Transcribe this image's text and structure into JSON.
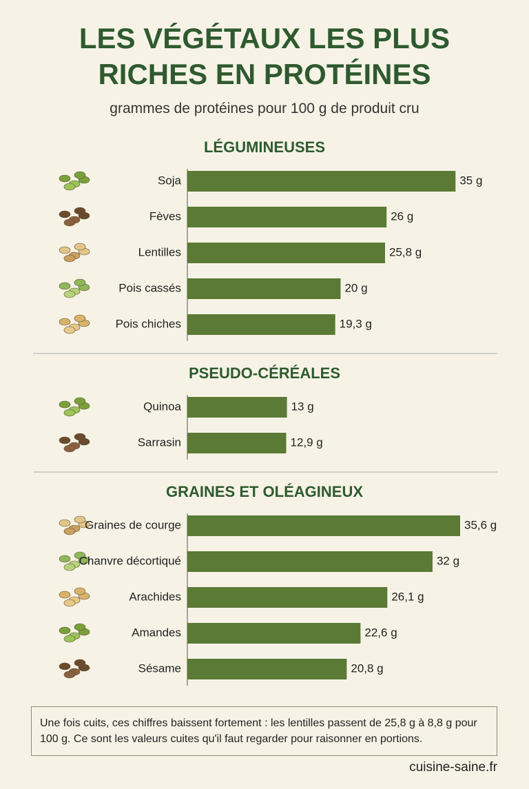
{
  "title": "LES VÉGÉTAUX LES PLUS RICHES EN PROTÉINES",
  "subtitle": "grammes de protéines pour 100 g de produit cru",
  "chart_data": [
    {
      "type": "bar",
      "orientation": "horizontal",
      "title": "LÉGUMINEUSES",
      "color": "#5b7a35",
      "categories": [
        "Soja",
        "Fèves",
        "Lentilles",
        "Pois cassés",
        "Pois chiches"
      ],
      "values": [
        35,
        26,
        25.8,
        20,
        19.3
      ],
      "value_labels": [
        "35 g",
        "26 g",
        "25,8 g",
        "20 g",
        "19,3 g"
      ]
    },
    {
      "type": "bar",
      "orientation": "horizontal",
      "title": "PSEUDO-CÉRÉALES",
      "color": "#5b7a35",
      "categories": [
        "Quinoa",
        "Sarrasin"
      ],
      "values": [
        13,
        12.9
      ],
      "value_labels": [
        "13 g",
        "12,9 g"
      ]
    },
    {
      "type": "bar",
      "orientation": "horizontal",
      "title": "GRAINES ET OLÉAGINEUX",
      "color": "#5b7a35",
      "categories": [
        "Graines de courge",
        "Chanvre décortiqué",
        "Arachides",
        "Amandes",
        "Sésame"
      ],
      "values": [
        35.6,
        32,
        26.1,
        22.6,
        20.8
      ],
      "value_labels": [
        "35,6 g",
        "32 g",
        "26,1 g",
        "22,6 g",
        "20,8 g"
      ]
    }
  ],
  "note": "Une fois cuits, ces chiffres baissent fortement : les lentilles passent de 25,8 g à 8,8 g pour 100 g. Ce sont les valeurs cuites qu'il faut regarder pour raisonner en portions.",
  "source": "cuisine-saine.fr"
}
